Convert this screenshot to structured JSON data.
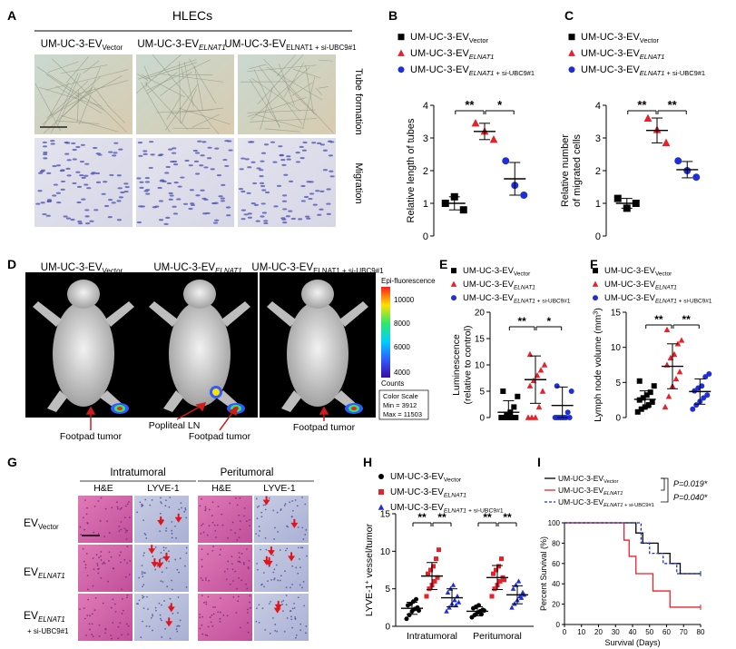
{
  "panels": {
    "A": {
      "letter": "A",
      "title": "HLECs",
      "columns": [
        {
          "base": "UM-UC-3-EV",
          "sub": "Vector"
        },
        {
          "base": "UM-UC-3-EV",
          "sub": "ELNAT1"
        },
        {
          "base": "UM-UC-3-EV",
          "sub": "ELNAT1 + si-UBC9#1"
        }
      ],
      "rows": [
        "Tube formation",
        "Migration"
      ]
    },
    "B": {
      "letter": "B"
    },
    "C": {
      "letter": "C"
    },
    "D": {
      "letter": "D",
      "images": [
        {
          "base": "UM-UC-3-EV",
          "sub": "Vector",
          "annotations": [
            "Footpad tumor"
          ]
        },
        {
          "base": "UM-UC-3-EV",
          "sub": "ELNAT1",
          "annotations": [
            "Popliteal LN",
            "Footpad tumor"
          ]
        },
        {
          "base": "UM-UC-3-EV",
          "sub": "ELNAT1 + si-UBC9#1",
          "annotations": [
            "Footpad tumor"
          ]
        }
      ],
      "colorbar": {
        "title": "Epi-fluorescence",
        "ticks": [
          "10000",
          "8000",
          "6000",
          "4000"
        ],
        "unit": "Counts",
        "scale_title": "Color Scale",
        "min": "Min = 3912",
        "max": "Max = 11503"
      }
    },
    "E": {
      "letter": "E"
    },
    "F": {
      "letter": "F"
    },
    "G": {
      "letter": "G",
      "groups": [
        "Intratumoral",
        "Peritumoral"
      ],
      "stains": [
        "H&E",
        "LYVE-1",
        "H&E",
        "LYVE-1"
      ],
      "rows": [
        {
          "base": "EV",
          "sub": "Vector",
          "extra": ""
        },
        {
          "base": "EV",
          "sub": "ELNAT1",
          "extra": ""
        },
        {
          "base": "EV",
          "sub": "ELNAT1",
          "extra": "+ si-UBC9#1"
        }
      ]
    },
    "H": {
      "letter": "H"
    },
    "I": {
      "letter": "I"
    }
  },
  "chart_data": [
    {
      "panel": "B",
      "type": "scatter",
      "ylabel": "Relative length of tubes",
      "ylim": [
        0,
        4
      ],
      "yticks": [
        0,
        1,
        2,
        3,
        4
      ],
      "legend": [
        {
          "base": "UM-UC-3-EV",
          "sub": "Vector",
          "marker": "square",
          "color": "#000000"
        },
        {
          "base": "UM-UC-3-EV",
          "sub": "ELNAT1",
          "marker": "triangle",
          "color": "#e8202a"
        },
        {
          "base": "UM-UC-3-EV",
          "sub": "ELNAT1 + si-UBC9#1",
          "marker": "circle",
          "color": "#1f2fd8"
        }
      ],
      "series": [
        {
          "points": [
            1.0,
            1.2,
            0.8
          ],
          "mean": 1.0,
          "sd": 0.2
        },
        {
          "points": [
            3.45,
            3.2,
            2.95
          ],
          "mean": 3.2,
          "sd": 0.25
        },
        {
          "points": [
            2.3,
            1.55,
            1.25
          ],
          "mean": 1.75,
          "sd": 0.5
        }
      ],
      "significance": [
        {
          "from": 0,
          "to": 1,
          "label": "**"
        },
        {
          "from": 1,
          "to": 2,
          "label": "*"
        }
      ]
    },
    {
      "panel": "C",
      "type": "scatter",
      "ylabel": "Relative number of migrated cells",
      "ylabel_lines": [
        "Relative number",
        "of migrated cells"
      ],
      "ylim": [
        0,
        4
      ],
      "yticks": [
        0,
        1,
        2,
        3,
        4
      ],
      "legend": [
        {
          "base": "UM-UC-3-EV",
          "sub": "Vector",
          "marker": "square",
          "color": "#000000"
        },
        {
          "base": "UM-UC-3-EV",
          "sub": "ELNAT1",
          "marker": "triangle",
          "color": "#e8202a"
        },
        {
          "base": "UM-UC-3-EV",
          "sub": "ELNAT1 + si-UBC9#1",
          "marker": "circle",
          "color": "#1f2fd8"
        }
      ],
      "series": [
        {
          "points": [
            1.15,
            0.85,
            1.0
          ],
          "mean": 1.0,
          "sd": 0.15
        },
        {
          "points": [
            3.6,
            3.25,
            2.85
          ],
          "mean": 3.23,
          "sd": 0.38
        },
        {
          "points": [
            2.3,
            2.0,
            1.8
          ],
          "mean": 2.03,
          "sd": 0.25
        }
      ],
      "significance": [
        {
          "from": 0,
          "to": 1,
          "label": "**"
        },
        {
          "from": 1,
          "to": 2,
          "label": "**"
        }
      ]
    },
    {
      "panel": "E",
      "type": "scatter",
      "ylabel": "Luminescence (relative to control)",
      "ylabel_lines": [
        "Luminescence",
        "(relative to control)"
      ],
      "ylim": [
        0,
        20
      ],
      "yticks": [
        0,
        5,
        10,
        15,
        20
      ],
      "legend": [
        {
          "base": "UM-UC-3-EV",
          "sub": "Vector",
          "marker": "square",
          "color": "#000000"
        },
        {
          "base": "UM-UC-3-EV",
          "sub": "ELNAT1",
          "marker": "triangle",
          "color": "#e8202a"
        },
        {
          "base": "UM-UC-3-EV",
          "sub": "ELNAT1 + si-UBC9#1",
          "marker": "circle",
          "color": "#1f2fd8"
        }
      ],
      "series": [
        {
          "points": [
            0,
            0,
            0,
            0,
            0,
            0,
            0.5,
            1,
            2,
            4,
            5
          ],
          "mean": 1.0,
          "sd": 2.2
        },
        {
          "points": [
            0,
            0,
            0,
            2,
            5,
            6,
            7,
            8,
            9,
            10,
            12
          ],
          "mean": 7.2,
          "sd": 4.5
        },
        {
          "points": [
            0,
            0,
            0,
            0,
            0,
            0,
            0,
            0,
            1,
            5,
            6
          ],
          "mean": 2.3,
          "sd": 3.5
        }
      ],
      "significance": [
        {
          "from": 0,
          "to": 1,
          "label": "**"
        },
        {
          "from": 1,
          "to": 2,
          "label": "*"
        }
      ]
    },
    {
      "panel": "F",
      "type": "scatter",
      "ylabel": "Lymph node volume (mm3)",
      "ylabel_base": "Lymph node volume (mm",
      "ylabel_sup": "3",
      "ylabel_end": ")",
      "ylim": [
        0,
        15
      ],
      "yticks": [
        0,
        5,
        10,
        15
      ],
      "legend": [
        {
          "base": "UM-UC-3-EV",
          "sub": "Vector",
          "marker": "square",
          "color": "#000000"
        },
        {
          "base": "UM-UC-3-EV",
          "sub": "ELNAT1",
          "marker": "triangle",
          "color": "#e8202a"
        },
        {
          "base": "UM-UC-3-EV",
          "sub": "ELNAT1 + si-UBC9#1",
          "marker": "circle",
          "color": "#1f2fd8"
        }
      ],
      "series": [
        {
          "points": [
            0.8,
            1.2,
            1.5,
            1.8,
            2.2,
            2.5,
            2.8,
            3.2,
            3.6,
            4.5,
            5.2
          ],
          "mean": 2.6,
          "sd": 1.2
        },
        {
          "points": [
            1.5,
            3.0,
            4.5,
            5.5,
            6.5,
            7.5,
            8.5,
            9.0,
            10.5,
            11.0,
            12.5
          ],
          "mean": 7.3,
          "sd": 3.2
        },
        {
          "points": [
            1.2,
            1.8,
            2.3,
            2.8,
            3.2,
            3.8,
            4.2,
            4.5,
            5.8,
            6.2
          ],
          "mean": 3.7,
          "sd": 1.8
        }
      ],
      "significance": [
        {
          "from": 0,
          "to": 1,
          "label": "**"
        },
        {
          "from": 1,
          "to": 2,
          "label": "**"
        }
      ]
    },
    {
      "panel": "H",
      "type": "scatter",
      "ylabel": "LYVE-1+ vessel/tumor",
      "ylabel_base": "LYVE-1",
      "ylabel_sup": "+",
      "ylabel_end": " vessel/tumor",
      "ylim": [
        0,
        15
      ],
      "yticks": [
        0,
        5,
        10,
        15
      ],
      "categories": [
        "Intratumoral",
        "Peritumoral"
      ],
      "legend": [
        {
          "base": "UM-UC-3-EV",
          "sub": "Vector",
          "marker": "circle",
          "color": "#000000"
        },
        {
          "base": "UM-UC-3-EV",
          "sub": "ELNAT1",
          "marker": "square",
          "color": "#e8202a"
        },
        {
          "base": "UM-UC-3-EV",
          "sub": "ELNAT1 + si-UBC9#1",
          "marker": "triangle",
          "color": "#1f2fd8"
        }
      ],
      "groups": [
        {
          "series": [
            {
              "points": [
                1.0,
                1.5,
                2.0,
                2.3,
                2.5,
                2.8,
                3.0,
                3.3,
                3.6,
                2.1
              ],
              "mean": 2.4,
              "sd": 0.8
            },
            {
              "points": [
                4.0,
                5.0,
                5.5,
                6.0,
                6.5,
                7.0,
                7.5,
                8.0,
                9.0,
                10.2
              ],
              "mean": 6.7,
              "sd": 1.8
            },
            {
              "points": [
                2.0,
                2.5,
                3.0,
                3.5,
                4.0,
                4.5,
                5.0,
                5.5,
                2.8,
                3.2
              ],
              "mean": 3.8,
              "sd": 1.2
            }
          ],
          "significance": [
            {
              "from": 0,
              "to": 1,
              "label": "**"
            },
            {
              "from": 1,
              "to": 2,
              "label": "**"
            }
          ]
        },
        {
          "series": [
            {
              "points": [
                1.2,
                1.5,
                1.8,
                2.0,
                2.2,
                2.4,
                2.6,
                2.8,
                1.6,
                2.1
              ],
              "mean": 2.0,
              "sd": 0.6
            },
            {
              "points": [
                4.0,
                5.0,
                5.5,
                6.0,
                6.5,
                7.0,
                7.5,
                8.0,
                9.0,
                6.2
              ],
              "mean": 6.5,
              "sd": 1.6
            },
            {
              "points": [
                2.5,
                3.0,
                3.5,
                4.0,
                4.5,
                5.0,
                5.5,
                6.0,
                3.8,
                4.2
              ],
              "mean": 4.2,
              "sd": 1.2
            }
          ],
          "significance": [
            {
              "from": 0,
              "to": 1,
              "label": "**"
            },
            {
              "from": 1,
              "to": 2,
              "label": "**"
            }
          ]
        }
      ]
    },
    {
      "panel": "I",
      "type": "line",
      "subtype": "kaplan-meier",
      "xlabel": "Survival (Days)",
      "ylabel": "Percent Survival (%)",
      "xlim": [
        0,
        80
      ],
      "ylim": [
        0,
        100
      ],
      "xticks": [
        0,
        10,
        20,
        30,
        40,
        50,
        60,
        70,
        80
      ],
      "yticks": [
        0,
        20,
        40,
        60,
        80,
        100
      ],
      "legend": [
        {
          "base": "UM-UC-3-EV",
          "sub": "Vector",
          "color": "#000000",
          "dash": "solid"
        },
        {
          "base": "UM-UC-3-EV",
          "sub": "ELNAT1",
          "color": "#e8202a",
          "dash": "solid"
        },
        {
          "base": "UM-UC-3-EV",
          "sub": "ELNAT1 + si-UBC9#1",
          "color": "#1f2fd8",
          "dash": "dashed"
        }
      ],
      "pvalues": [
        "P=0.019*",
        "P=0.040*"
      ],
      "series": [
        {
          "x": [
            0,
            38,
            42,
            46,
            55,
            62,
            68,
            80
          ],
          "y": [
            100,
            100,
            90,
            80,
            70,
            60,
            50,
            50
          ]
        },
        {
          "x": [
            0,
            32,
            35,
            38,
            42,
            52,
            62,
            80
          ],
          "y": [
            100,
            100,
            83,
            67,
            50,
            33,
            17,
            17
          ]
        },
        {
          "x": [
            0,
            40,
            45,
            50,
            58,
            66,
            80
          ],
          "y": [
            100,
            100,
            80,
            70,
            60,
            50,
            50
          ]
        }
      ]
    }
  ]
}
